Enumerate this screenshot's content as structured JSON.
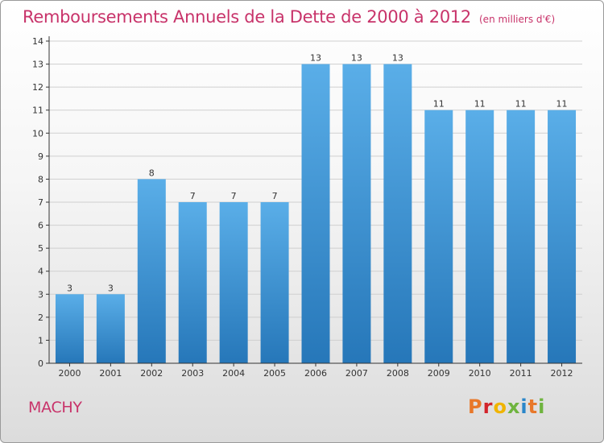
{
  "header": {
    "title": "Remboursements Annuels de la Dette de 2000 à 2012",
    "unit": "(en milliers d'€)"
  },
  "footer": {
    "place": "MACHY",
    "logo_text": "Proxiti",
    "logo_colors": [
      "#e8782a",
      "#d2232a",
      "#f0b400",
      "#6fb43f",
      "#2a86c9",
      "#e8782a",
      "#6fb43f"
    ]
  },
  "colors": {
    "bar_top": "#5aaee8",
    "bar_bottom": "#2677b9",
    "title": "#c8336a",
    "grid": "#cfcfcf",
    "axis": "#333333"
  },
  "chart_data": {
    "type": "bar",
    "title": "Remboursements Annuels de la Dette de 2000 à 2012",
    "subtitle": "(en milliers d'€)",
    "categories": [
      "2000",
      "2001",
      "2002",
      "2003",
      "2004",
      "2005",
      "2006",
      "2007",
      "2008",
      "2009",
      "2010",
      "2011",
      "2012"
    ],
    "values": [
      3,
      3,
      8,
      7,
      7,
      7,
      13,
      13,
      13,
      11,
      11,
      11,
      11
    ],
    "data_labels": [
      "3",
      "3",
      "8",
      "7",
      "7",
      "7",
      "13",
      "13",
      "13",
      "11",
      "11",
      "11",
      "11"
    ],
    "y_ticks": [
      0,
      1,
      2,
      3,
      4,
      5,
      6,
      7,
      8,
      9,
      10,
      11,
      12,
      13,
      14
    ],
    "ylim": [
      0,
      14
    ],
    "grid": true,
    "legend": "none",
    "xlabel": "",
    "ylabel": ""
  }
}
